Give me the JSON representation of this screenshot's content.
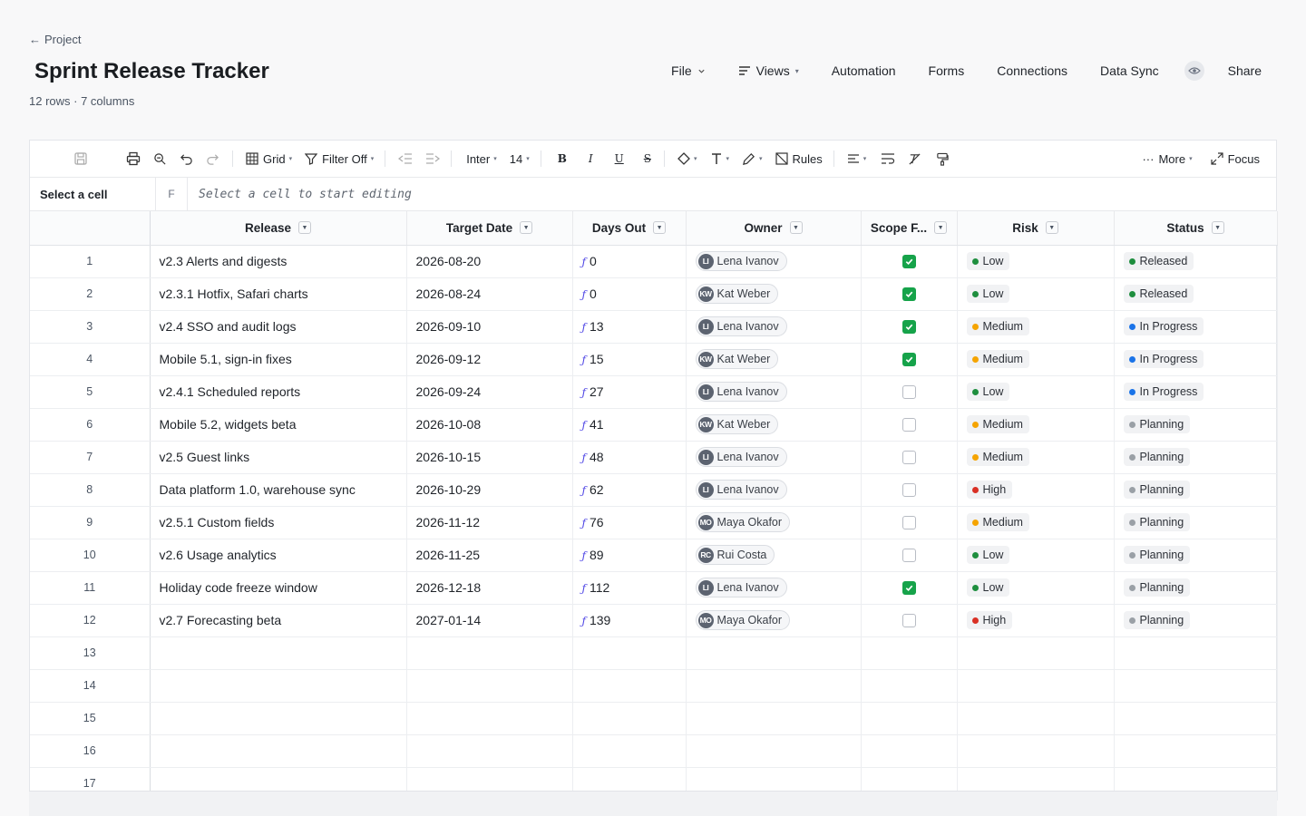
{
  "breadcrumb": {
    "label": "Project"
  },
  "title": "Sprint Release Tracker",
  "subtitle": "12 rows · 7 columns",
  "nav": {
    "file": "File",
    "views": "Views",
    "automation": "Automation",
    "forms": "Forms",
    "connections": "Connections",
    "data_sync": "Data Sync",
    "share": "Share"
  },
  "toolbar": {
    "grid": "Grid",
    "filter": "Filter Off",
    "font": "Inter",
    "size": "14",
    "bold": "B",
    "italic": "I",
    "underline": "U",
    "strike": "S",
    "rules": "Rules",
    "more": "More",
    "focus": "Focus"
  },
  "formula_bar": {
    "cell_ref": "Select a cell",
    "fx": "F",
    "placeholder": "Select a cell to start editing"
  },
  "columns": [
    "Release",
    "Target Date",
    "Days Out",
    "Owner",
    "Scope F...",
    "Risk",
    "Status"
  ],
  "risk_colors": {
    "Low": "#1e8e3e",
    "Medium": "#f5a400",
    "High": "#d93025"
  },
  "status_colors": {
    "Released": "#1e8e3e",
    "In Progress": "#1a73e8",
    "Planning": "#9aa0a6"
  },
  "rows": [
    {
      "n": "1",
      "release": "v2.3 Alerts and digests",
      "date": "2026-08-20",
      "days": "0",
      "owner": "Lena Ivanov",
      "initials": "LI",
      "scope": true,
      "risk": "Low",
      "status": "Released"
    },
    {
      "n": "2",
      "release": "v2.3.1 Hotfix, Safari charts",
      "date": "2026-08-24",
      "days": "0",
      "owner": "Kat Weber",
      "initials": "KW",
      "scope": true,
      "risk": "Low",
      "status": "Released"
    },
    {
      "n": "3",
      "release": "v2.4 SSO and audit logs",
      "date": "2026-09-10",
      "days": "13",
      "owner": "Lena Ivanov",
      "initials": "LI",
      "scope": true,
      "risk": "Medium",
      "status": "In Progress"
    },
    {
      "n": "4",
      "release": "Mobile 5.1, sign-in fixes",
      "date": "2026-09-12",
      "days": "15",
      "owner": "Kat Weber",
      "initials": "KW",
      "scope": true,
      "risk": "Medium",
      "status": "In Progress"
    },
    {
      "n": "5",
      "release": "v2.4.1 Scheduled reports",
      "date": "2026-09-24",
      "days": "27",
      "owner": "Lena Ivanov",
      "initials": "LI",
      "scope": false,
      "risk": "Low",
      "status": "In Progress"
    },
    {
      "n": "6",
      "release": "Mobile 5.2, widgets beta",
      "date": "2026-10-08",
      "days": "41",
      "owner": "Kat Weber",
      "initials": "KW",
      "scope": false,
      "risk": "Medium",
      "status": "Planning"
    },
    {
      "n": "7",
      "release": "v2.5 Guest links",
      "date": "2026-10-15",
      "days": "48",
      "owner": "Lena Ivanov",
      "initials": "LI",
      "scope": false,
      "risk": "Medium",
      "status": "Planning"
    },
    {
      "n": "8",
      "release": "Data platform 1.0, warehouse sync",
      "date": "2026-10-29",
      "days": "62",
      "owner": "Lena Ivanov",
      "initials": "LI",
      "scope": false,
      "risk": "High",
      "status": "Planning"
    },
    {
      "n": "9",
      "release": "v2.5.1 Custom fields",
      "date": "2026-11-12",
      "days": "76",
      "owner": "Maya Okafor",
      "initials": "MO",
      "scope": false,
      "risk": "Medium",
      "status": "Planning"
    },
    {
      "n": "10",
      "release": "v2.6 Usage analytics",
      "date": "2026-11-25",
      "days": "89",
      "owner": "Rui Costa",
      "initials": "RC",
      "scope": false,
      "risk": "Low",
      "status": "Planning"
    },
    {
      "n": "11",
      "release": "Holiday code freeze window",
      "date": "2026-12-18",
      "days": "112",
      "owner": "Lena Ivanov",
      "initials": "LI",
      "scope": true,
      "risk": "Low",
      "status": "Planning"
    },
    {
      "n": "12",
      "release": "v2.7 Forecasting beta",
      "date": "2027-01-14",
      "days": "139",
      "owner": "Maya Okafor",
      "initials": "MO",
      "scope": false,
      "risk": "High",
      "status": "Planning"
    }
  ],
  "empty_rows": [
    "13",
    "14",
    "15",
    "16",
    "17"
  ]
}
